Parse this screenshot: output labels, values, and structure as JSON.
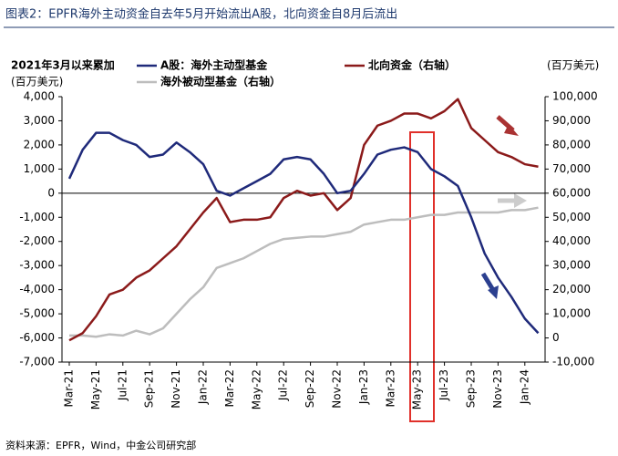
{
  "chart_data": {
    "type": "line",
    "title": "图表2：EPFR海外主动资金自去年5月开始流出A股，北向资金自8月后流出",
    "subtitle": "2021年3月以来累加",
    "y_label": "(百万美元)",
    "y2_label": "(百万美元)",
    "source": "资料来源：EPFR，Wind，中金公司研究部",
    "categories": [
      "Mar-21",
      null,
      "May-21",
      null,
      "Jul-21",
      null,
      "Sep-21",
      null,
      "Nov-21",
      null,
      "Jan-22",
      null,
      "Mar-22",
      null,
      "May-22",
      null,
      "Jul-22",
      null,
      "Sep-22",
      null,
      "Nov-22",
      null,
      "Jan-23",
      null,
      "Mar-23",
      null,
      "May-23",
      null,
      "Jul-23",
      null,
      "Sep-23",
      null,
      "Nov-23",
      null,
      "Jan-24",
      null
    ],
    "series": [
      {
        "name": "A股：海外主动型基金",
        "color": "#1f2a7a",
        "values": [
          600,
          1800,
          2500,
          2500,
          2200,
          2000,
          1500,
          1600,
          2100,
          1700,
          1200,
          100,
          -100,
          200,
          500,
          800,
          1400,
          1500,
          1400,
          800,
          0,
          100,
          800,
          1600,
          1800,
          1900,
          1700,
          1000,
          700,
          300,
          -1000,
          -2500,
          -3500,
          -4300,
          -5200,
          -5800
        ]
      },
      {
        "name": "北向资金（右轴）",
        "color": "#8b1a1a",
        "axis": "y2",
        "values": [
          -1000,
          2000,
          9000,
          18000,
          20000,
          25000,
          28000,
          33000,
          38000,
          45000,
          52000,
          58000,
          48000,
          49000,
          49000,
          50000,
          58000,
          61000,
          59000,
          60000,
          53000,
          58000,
          80000,
          88000,
          90000,
          93000,
          93000,
          91000,
          94000,
          99000,
          87000,
          82000,
          77000,
          75000,
          72000,
          71000
        ]
      },
      {
        "name": "海外被动型基金（右轴）",
        "color": "#bdbdbd",
        "axis": "y2",
        "values": [
          1000,
          1000,
          500,
          1500,
          1000,
          3000,
          1500,
          4000,
          10000,
          16000,
          21000,
          29000,
          31000,
          33000,
          36000,
          39000,
          41000,
          41500,
          42000,
          42000,
          43000,
          44000,
          47000,
          48000,
          49000,
          49000,
          50000,
          51000,
          51000,
          52000,
          52000,
          52000,
          52000,
          53000,
          53000,
          54000
        ]
      }
    ],
    "ylim": [
      -7000,
      4000
    ],
    "yticks": [
      {
        "value": 4000,
        "label": "4,000"
      },
      {
        "value": 3000,
        "label": "3,000"
      },
      {
        "value": 2000,
        "label": "2,000"
      },
      {
        "value": 1000,
        "label": "1,000"
      },
      0,
      {
        "value": -1000,
        "label": "-1,000"
      },
      {
        "value": -2000,
        "label": "-2,000"
      },
      {
        "value": -3000,
        "label": "-3,000"
      },
      {
        "value": -4000,
        "label": "-4,000"
      },
      {
        "value": -5000,
        "label": "-5,000"
      },
      {
        "value": -6000,
        "label": "-6,000"
      },
      {
        "value": -7000,
        "label": "-7,000"
      }
    ],
    "y2lim": [
      -10000,
      100000
    ],
    "y2ticks": [
      {
        "value": 100000,
        "label": "100,000"
      },
      {
        "value": 90000,
        "label": "90,000"
      },
      {
        "value": 80000,
        "label": "80,000"
      },
      {
        "value": 70000,
        "label": "70,000"
      },
      {
        "value": 60000,
        "label": "60,000"
      },
      {
        "value": 50000,
        "label": "50,000"
      },
      {
        "value": 40000,
        "label": "40,000"
      },
      {
        "value": 30000,
        "label": "30,000"
      },
      {
        "value": 20000,
        "label": "20,000"
      },
      {
        "value": 10000,
        "label": "10,000"
      },
      0,
      {
        "value": -10000,
        "label": "-10,000"
      }
    ]
  }
}
